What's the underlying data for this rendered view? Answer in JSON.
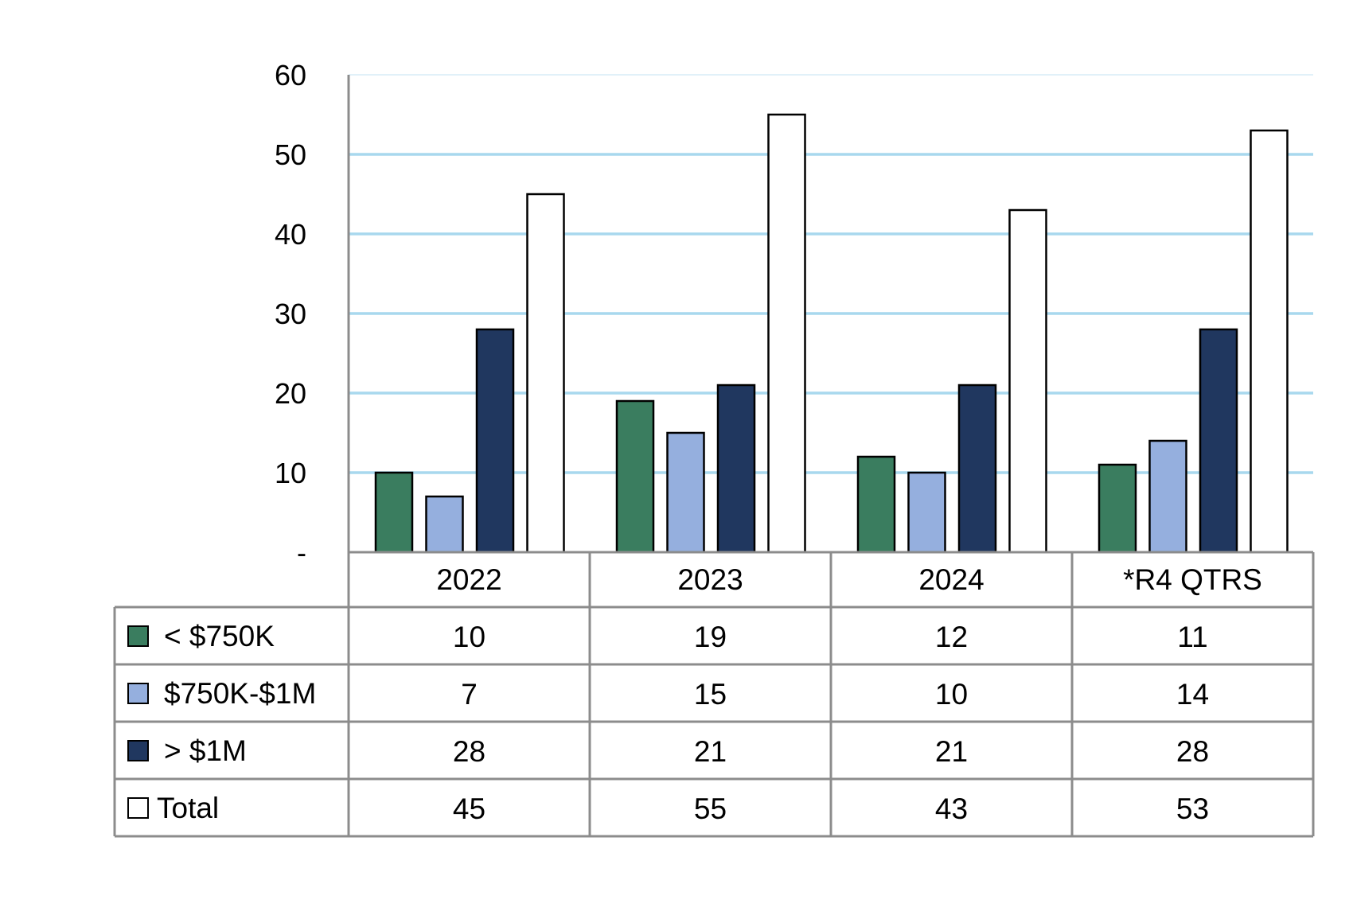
{
  "chart_data": {
    "type": "bar",
    "categories": [
      "2022",
      "2023",
      "2024",
      "*R4 QTRS"
    ],
    "series": [
      {
        "name": "< $750K",
        "values": [
          10,
          19,
          12,
          11
        ],
        "color": "#3A7D5F"
      },
      {
        "name": "$750K-$1M",
        "values": [
          7,
          15,
          10,
          14
        ],
        "color": "#95AFDE"
      },
      {
        "name": "> $1M",
        "values": [
          28,
          21,
          21,
          28
        ],
        "color": "#20375F"
      },
      {
        "name": "Total",
        "values": [
          45,
          55,
          43,
          53
        ],
        "color": "#FFFFFF"
      }
    ],
    "y_ticks": [
      "-",
      "10",
      "20",
      "30",
      "40",
      "50",
      "60"
    ],
    "ylim": [
      0,
      60
    ],
    "grid": true,
    "gridline_color": "#A8D8EE",
    "data_table": true,
    "legend": "data table"
  }
}
